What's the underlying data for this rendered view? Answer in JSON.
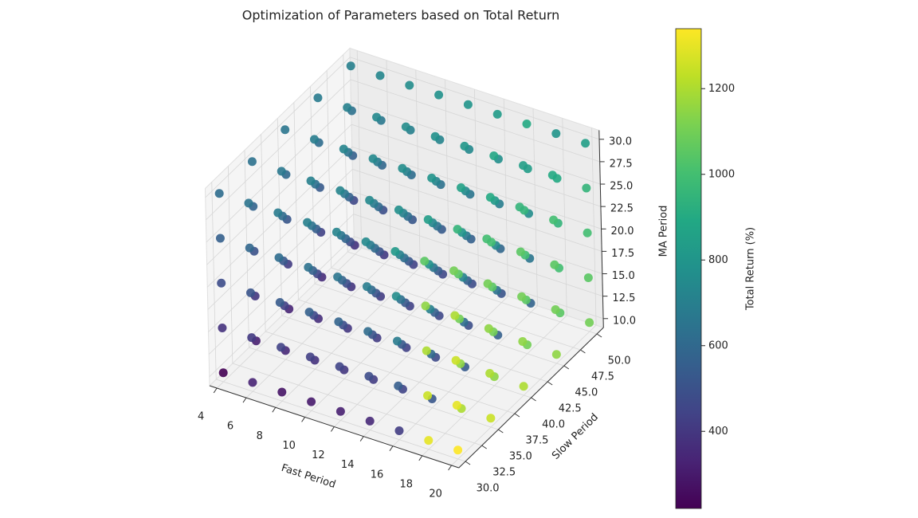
{
  "chart_data": {
    "type": "scatter3d",
    "title": "Optimization of Parameters based on Total Return",
    "xlabel": "Fast Period",
    "ylabel": "Slow Period",
    "zlabel": "MA Period",
    "colorbar_label": "Total Return (%)",
    "colormap": "viridis",
    "x": [
      4,
      6,
      8,
      10,
      12,
      14,
      16,
      18,
      20
    ],
    "y": [
      30,
      35,
      40,
      45,
      50
    ],
    "z": [
      10,
      15,
      20,
      25,
      30
    ],
    "values": [
      [
        [
          220,
          380,
          480,
          560,
          620
        ],
        [
          320,
          400,
          500,
          580,
          640
        ],
        [
          340,
          420,
          520,
          600,
          660
        ],
        [
          360,
          440,
          540,
          620,
          680
        ],
        [
          380,
          460,
          560,
          640,
          700
        ]
      ],
      [
        [
          330,
          410,
          510,
          590,
          650
        ],
        [
          350,
          430,
          530,
          610,
          670
        ],
        [
          370,
          450,
          550,
          630,
          690
        ],
        [
          390,
          470,
          570,
          650,
          710
        ],
        [
          410,
          490,
          590,
          670,
          730
        ]
      ],
      [
        [
          280,
          440,
          540,
          620,
          680
        ],
        [
          380,
          460,
          560,
          640,
          700
        ],
        [
          400,
          480,
          580,
          660,
          720
        ],
        [
          420,
          500,
          600,
          680,
          740
        ],
        [
          440,
          520,
          620,
          700,
          760
        ]
      ],
      [
        [
          300,
          430,
          560,
          640,
          700
        ],
        [
          400,
          480,
          580,
          660,
          720
        ],
        [
          420,
          500,
          600,
          680,
          740
        ],
        [
          440,
          520,
          620,
          700,
          760
        ],
        [
          460,
          540,
          640,
          720,
          780
        ]
      ],
      [
        [
          320,
          450,
          580,
          660,
          720
        ],
        [
          420,
          500,
          600,
          680,
          740
        ],
        [
          440,
          520,
          620,
          700,
          760
        ],
        [
          460,
          540,
          640,
          720,
          780
        ],
        [
          480,
          560,
          660,
          740,
          800
        ]
      ],
      [
        [
          350,
          480,
          610,
          690,
          750
        ],
        [
          450,
          530,
          630,
          710,
          770
        ],
        [
          470,
          550,
          650,
          730,
          790
        ],
        [
          490,
          570,
          670,
          750,
          810
        ],
        [
          510,
          590,
          690,
          770,
          830
        ]
      ],
      [
        [
          420,
          550,
          680,
          760,
          820
        ],
        [
          520,
          600,
          700,
          780,
          840
        ],
        [
          540,
          620,
          720,
          800,
          860
        ],
        [
          560,
          640,
          740,
          820,
          880
        ],
        [
          580,
          660,
          760,
          840,
          900
        ]
      ],
      [
        [
          1300,
          1250,
          1200,
          1150,
          1050
        ],
        [
          1200,
          1150,
          1100,
          1050,
          950
        ],
        [
          1150,
          1100,
          1050,
          1000,
          900
        ],
        [
          1100,
          1050,
          1000,
          950,
          850
        ],
        [
          1050,
          1000,
          950,
          900,
          800
        ]
      ],
      [
        [
          1340,
          1300,
          1250,
          1200,
          1100
        ],
        [
          1250,
          1200,
          1150,
          1100,
          1000
        ],
        [
          1200,
          1150,
          1100,
          1050,
          950
        ],
        [
          1150,
          1100,
          1050,
          1000,
          900
        ],
        [
          1100,
          1050,
          1000,
          950,
          850
        ]
      ]
    ],
    "xlim": [
      3.5,
      20.5
    ],
    "ylim": [
      29,
      51
    ],
    "zlim": [
      9,
      31
    ],
    "xticks": [
      4,
      6,
      8,
      10,
      12,
      14,
      16,
      18,
      20
    ],
    "yticks": [
      {
        "value": 30,
        "label": "30.0"
      },
      {
        "value": 32.5,
        "label": "32.5"
      },
      {
        "value": 35,
        "label": "35.0"
      },
      {
        "value": 37.5,
        "label": "37.5"
      },
      {
        "value": 40,
        "label": "40.0"
      },
      {
        "value": 42.5,
        "label": "42.5"
      },
      {
        "value": 45,
        "label": "45.0"
      },
      {
        "value": 47.5,
        "label": "47.5"
      },
      {
        "value": 50,
        "label": "50.0"
      }
    ],
    "zticks": [
      {
        "value": 10,
        "label": "10.0"
      },
      {
        "value": 12.5,
        "label": "12.5"
      },
      {
        "value": 15,
        "label": "15.0"
      },
      {
        "value": 17.5,
        "label": "17.5"
      },
      {
        "value": 20,
        "label": "20.0"
      },
      {
        "value": 22.5,
        "label": "22.5"
      },
      {
        "value": 25,
        "label": "25.0"
      },
      {
        "value": 27.5,
        "label": "27.5"
      },
      {
        "value": 30,
        "label": "30.0"
      }
    ],
    "clim": [
      220,
      1340
    ],
    "cticks": [
      400,
      600,
      800,
      1000,
      1200
    ],
    "grid": true
  }
}
